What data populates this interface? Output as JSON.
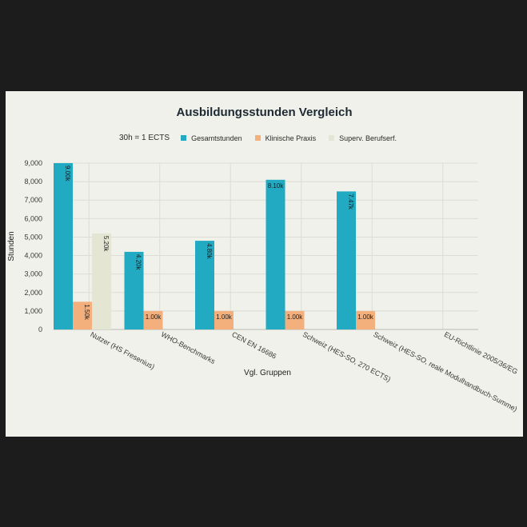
{
  "chart_data": {
    "type": "bar",
    "title": "Ausbildungsstunden Vergleich",
    "legend_title": "30h = 1 ECTS",
    "legend_position": "top",
    "xlabel": "Vgl. Gruppen",
    "ylabel": "Stunden",
    "ylim": [
      0,
      9000
    ],
    "yticks": [
      0,
      1000,
      2000,
      3000,
      4000,
      5000,
      6000,
      7000,
      8000,
      9000
    ],
    "ytick_labels": [
      "0",
      "1,000",
      "2,000",
      "3,000",
      "4,000",
      "5,000",
      "6,000",
      "7,000",
      "8,000",
      "9,000"
    ],
    "grid": true,
    "categories": [
      "Nutzer (HS Fresenius)",
      "WHO-Benchmarks",
      "CEN EN 16686",
      "Schweiz (HES-SO, 270 ECTS)",
      "Schweiz (HES-SO, reale Modulhandbuch-Summe)",
      "EU-Richtlinie 2005/36/EG"
    ],
    "series": [
      {
        "name": "Gesamtstunden",
        "color": "#22aac3",
        "values": [
          9000,
          4200,
          4800,
          8100,
          7470,
          null
        ],
        "labels": [
          "9.00k",
          "4.20k",
          "4.80k",
          "8.10k",
          "7.47k",
          ""
        ],
        "label_rotated": [
          true,
          true,
          true,
          false,
          true,
          false
        ]
      },
      {
        "name": "Klinische Praxis",
        "color": "#f4b07c",
        "values": [
          1500,
          1000,
          1000,
          1000,
          1000,
          null
        ],
        "labels": [
          "1.50k",
          "1.00k",
          "1.00k",
          "1.00k",
          "1.00k",
          ""
        ],
        "label_rotated": [
          true,
          false,
          false,
          false,
          false,
          false
        ]
      },
      {
        "name": "Superv. Berufserf.",
        "color": "#e5e5d3",
        "values": [
          5200,
          null,
          null,
          null,
          null,
          null
        ],
        "labels": [
          "5.20k",
          "",
          "",
          "",
          "",
          ""
        ],
        "label_rotated": [
          true,
          false,
          false,
          false,
          false,
          false
        ]
      }
    ]
  }
}
